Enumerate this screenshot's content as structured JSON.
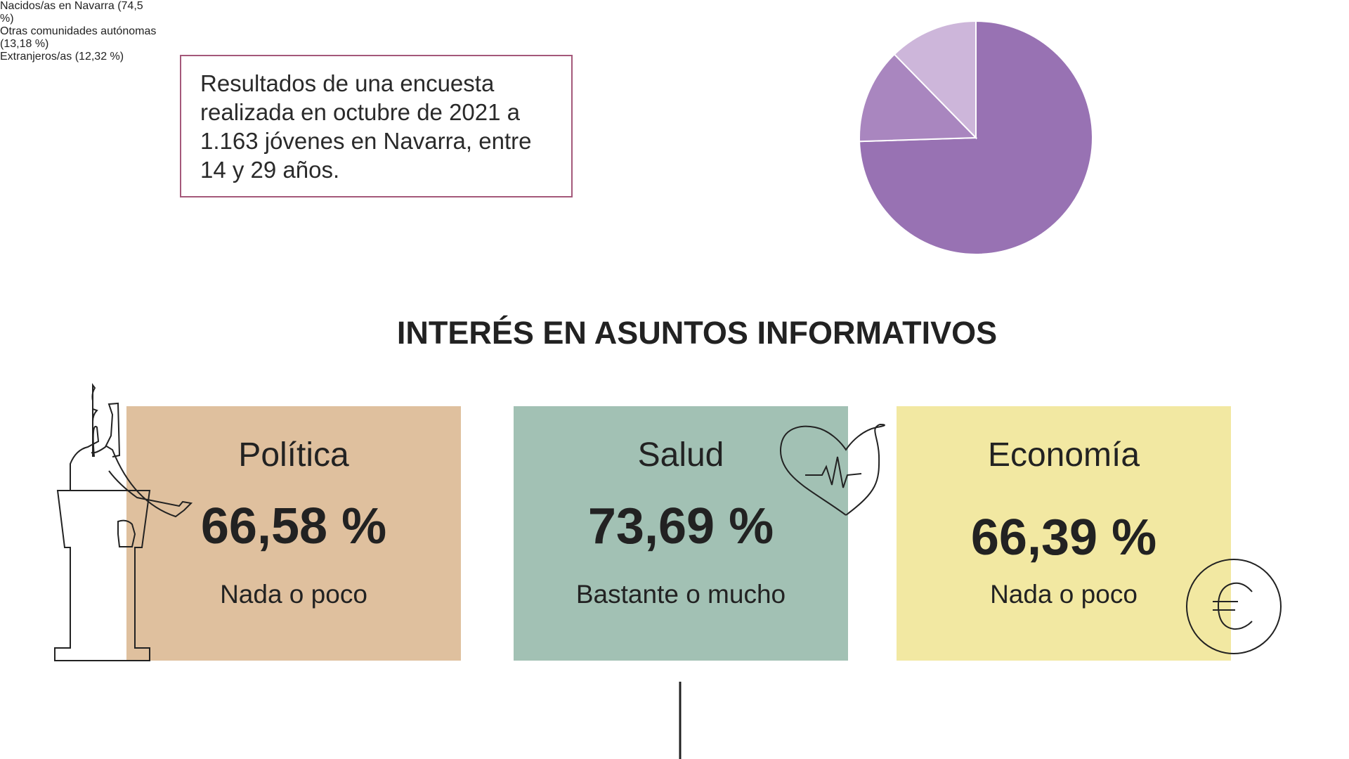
{
  "intro": "Resultados de una encuesta realizada en octubre de 2021 a 1.163 jóvenes en Navarra, entre 14 y 29 años.",
  "chart_data": {
    "type": "pie",
    "categories": [
      "Nacidos/as en Navarra",
      "Otras comunidades autónomas",
      "Extranjeros/as"
    ],
    "values": [
      74.5,
      13.18,
      12.32
    ],
    "value_labels": [
      "(74,5 %)",
      "(13,18 %)",
      "(12,32 %)"
    ],
    "colors": [
      "#9872b3",
      "#a986bf",
      "#cdb6da"
    ]
  },
  "section_title": "INTERÉS EN ASUNTOS INFORMATIVOS",
  "cards": [
    {
      "title": "Política",
      "value": "66,58 %",
      "label": "Nada o poco",
      "color": "#dfc09e"
    },
    {
      "title": "Salud",
      "value": "73,69 %",
      "label": "Bastante o mucho",
      "color": "#a2c1b4"
    },
    {
      "title": "Economía",
      "value": "66,39 %",
      "label": "Nada o poco",
      "color": "#f2e8a2"
    }
  ]
}
